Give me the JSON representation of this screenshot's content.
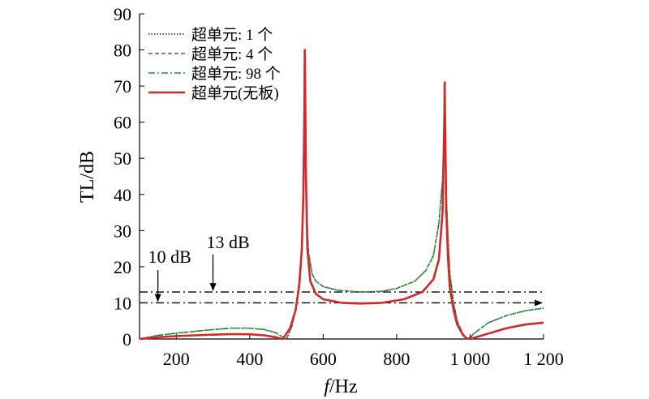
{
  "chart_data": {
    "type": "line",
    "xlabel_italic": "f",
    "xlabel_rest": "/Hz",
    "ylabel": "TL/dB",
    "xlim": [
      100,
      1200
    ],
    "ylim": [
      0,
      90
    ],
    "xticks": [
      200,
      400,
      600,
      800,
      1000,
      1200
    ],
    "xtick_labels": [
      "200",
      "400",
      "600",
      "800",
      "1 000",
      "1 200"
    ],
    "yticks": [
      0,
      10,
      20,
      30,
      40,
      50,
      60,
      70,
      80,
      90
    ],
    "ytick_labels": [
      "0",
      "10",
      "20",
      "30",
      "40",
      "50",
      "60",
      "70",
      "80",
      "90"
    ],
    "grid": false,
    "legend_position": "top-left",
    "series": [
      {
        "name": "超单元: 1 个",
        "color": "#000000",
        "dash": "dotted",
        "x": [
          100,
          150,
          200,
          250,
          300,
          350,
          400,
          440,
          470,
          490,
          500,
          515,
          530,
          540,
          545,
          548,
          550,
          552,
          555,
          560,
          570,
          580,
          600,
          640,
          700,
          760,
          800,
          850,
          880,
          900,
          915,
          925,
          930,
          933,
          935,
          940,
          945,
          955,
          965,
          980,
          990,
          1000,
          1010,
          1050,
          1100,
          1150,
          1200
        ],
        "y": [
          0,
          1.0,
          1.6,
          2.1,
          2.6,
          3.0,
          3.0,
          2.6,
          1.8,
          0.5,
          0.0,
          3.5,
          11,
          22,
          35,
          55,
          65,
          55,
          35,
          24,
          18,
          16,
          14.5,
          13.5,
          13,
          13.2,
          14,
          16,
          19,
          23,
          32,
          44,
          57,
          52,
          40,
          28,
          18,
          10,
          5,
          1.5,
          0.2,
          0.3,
          1.5,
          4.5,
          6.5,
          7.8,
          8.5
        ]
      },
      {
        "name": "超单元: 4 个",
        "color": "#1f3a93",
        "dash": "dashed",
        "x": [
          100,
          150,
          200,
          250,
          300,
          350,
          400,
          440,
          470,
          490,
          500,
          515,
          530,
          540,
          545,
          548,
          550,
          552,
          555,
          560,
          570,
          580,
          600,
          640,
          700,
          760,
          800,
          850,
          880,
          900,
          915,
          925,
          930,
          933,
          935,
          940,
          945,
          955,
          965,
          980,
          990,
          1000,
          1010,
          1050,
          1100,
          1150,
          1200
        ],
        "y": [
          0,
          1.0,
          1.6,
          2.1,
          2.6,
          3.0,
          3.0,
          2.6,
          1.8,
          0.5,
          0.0,
          3.5,
          11,
          22,
          35,
          55,
          66,
          55,
          35,
          24,
          18,
          16,
          14.5,
          13.5,
          13,
          13.2,
          14,
          16,
          19,
          23,
          32,
          44,
          57,
          52,
          40,
          28,
          18,
          10,
          5,
          1.5,
          0.2,
          0.3,
          1.5,
          4.5,
          6.5,
          7.8,
          8.5
        ]
      },
      {
        "name": "超单元: 98 个",
        "color": "#3aa63a",
        "dash": "dashdot",
        "x": [
          100,
          150,
          200,
          250,
          300,
          350,
          400,
          440,
          470,
          490,
          500,
          515,
          530,
          540,
          545,
          548,
          550,
          552,
          555,
          560,
          570,
          580,
          600,
          640,
          700,
          760,
          800,
          850,
          880,
          900,
          915,
          925,
          930,
          933,
          935,
          940,
          945,
          955,
          965,
          980,
          990,
          1000,
          1010,
          1050,
          1100,
          1150,
          1200
        ],
        "y": [
          0,
          1.0,
          1.6,
          2.1,
          2.6,
          3.0,
          3.0,
          2.6,
          1.8,
          0.5,
          0.0,
          3.5,
          11,
          22,
          35,
          55,
          68,
          55,
          35,
          24,
          18,
          16,
          14.5,
          13.5,
          13,
          13.2,
          14,
          16,
          19,
          23,
          32,
          44,
          57,
          52,
          40,
          28,
          18,
          10,
          5,
          1.5,
          0.2,
          0.3,
          1.5,
          4.5,
          6.5,
          7.8,
          8.5
        ]
      },
      {
        "name": "超单元(无板)",
        "color": "#d62728",
        "dash": "solid",
        "x": [
          100,
          150,
          200,
          250,
          300,
          350,
          400,
          440,
          470,
          485,
          490,
          510,
          525,
          535,
          542,
          546,
          549,
          550,
          551,
          553,
          557,
          565,
          580,
          600,
          650,
          700,
          760,
          820,
          870,
          900,
          915,
          925,
          930,
          931,
          932,
          935,
          940,
          945,
          955,
          965,
          980,
          990,
          1000,
          1050,
          1100,
          1150,
          1200
        ],
        "y": [
          0,
          0.5,
          0.8,
          1.0,
          1.2,
          1.35,
          1.3,
          1.0,
          0.5,
          0.1,
          0.0,
          3,
          8,
          15,
          25,
          40,
          65,
          80,
          70,
          45,
          25,
          16,
          12.5,
          11,
          10,
          9.8,
          10,
          11,
          13,
          16.5,
          22,
          35,
          62,
          71,
          60,
          36,
          22,
          14,
          8,
          4,
          1.2,
          0.2,
          0.0,
          1.5,
          3,
          4,
          4.5
        ]
      }
    ],
    "annotations": [
      {
        "text": "10 dB",
        "level": 10,
        "arrow_x": 150
      },
      {
        "text": "13 dB",
        "level": 13,
        "arrow_x": 300
      }
    ]
  }
}
